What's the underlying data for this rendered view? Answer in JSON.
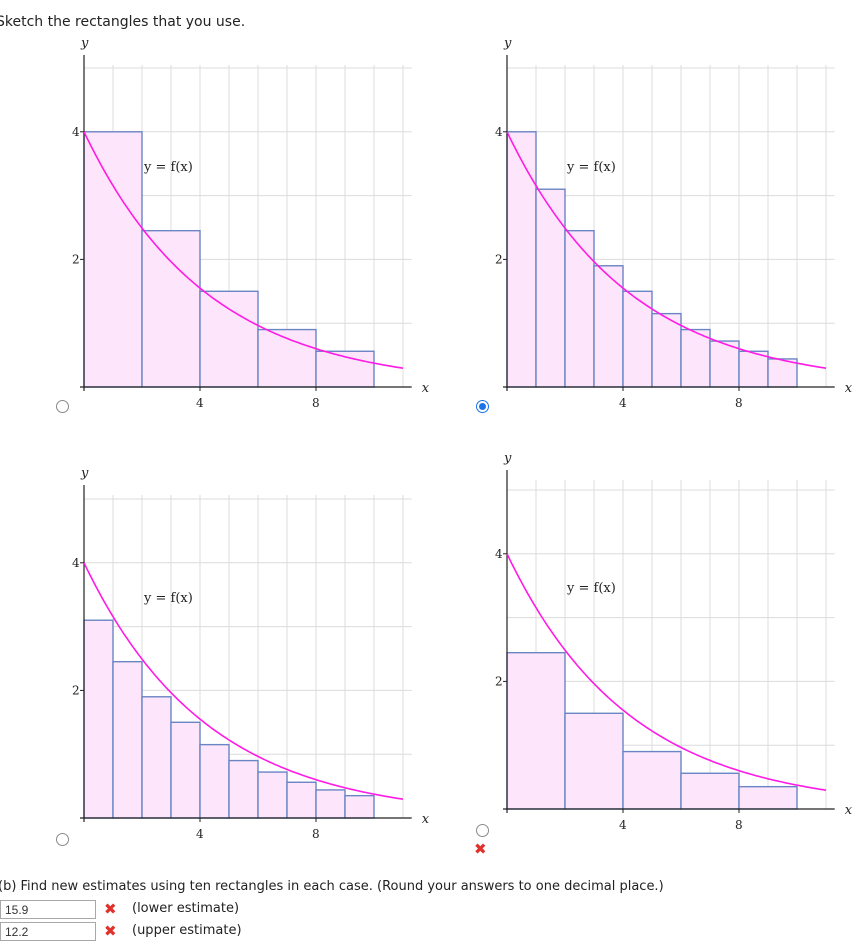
{
  "instruction": "Sketch the rectangles that you use.",
  "graph_labels": {
    "y_axis": "y",
    "x_axis": "x",
    "function": "y = f(x)"
  },
  "tick_labels": {
    "y": [
      "2",
      "4"
    ],
    "x": [
      "4",
      "8"
    ]
  },
  "options": [
    {
      "id": "a",
      "rectangles": 5,
      "endpoint": "left",
      "selected": false,
      "marked_wrong": false
    },
    {
      "id": "b",
      "rectangles": 10,
      "endpoint": "left",
      "selected": true,
      "marked_wrong": false
    },
    {
      "id": "c",
      "rectangles": 10,
      "endpoint": "right",
      "selected": false,
      "marked_wrong": false
    },
    {
      "id": "d",
      "rectangles": 5,
      "endpoint": "right",
      "selected": false,
      "marked_wrong": true
    }
  ],
  "part_b": {
    "prompt": "(b) Find new estimates using ten rectangles in each case. (Round your answers to one decimal place.)",
    "lower": {
      "value": "15.9",
      "label": "(lower estimate)",
      "correct": false
    },
    "upper": {
      "value": "12.2",
      "label": "(upper estimate)",
      "correct": false
    }
  },
  "chart_data": {
    "type": "area",
    "x_range": [
      0,
      11
    ],
    "y_range": [
      -0.2,
      5
    ],
    "x_ticks": [
      4,
      8
    ],
    "y_ticks": [
      2,
      4
    ],
    "curve": {
      "x": [
        0,
        1,
        2,
        3,
        4,
        5,
        6,
        7,
        8,
        9,
        10,
        11
      ],
      "y": [
        4.0,
        3.1,
        2.45,
        1.9,
        1.5,
        1.15,
        0.9,
        0.72,
        0.56,
        0.44,
        0.35,
        0.28
      ]
    },
    "rect_heights_5_left": [
      4.0,
      2.45,
      1.5,
      0.9,
      0.56
    ],
    "rect_heights_10_left": [
      4.0,
      3.1,
      2.45,
      1.9,
      1.5,
      1.15,
      0.9,
      0.72,
      0.56,
      0.44
    ],
    "rect_heights_10_right": [
      3.1,
      2.45,
      1.9,
      1.5,
      1.15,
      0.9,
      0.72,
      0.56,
      0.44,
      0.35
    ],
    "rect_heights_5_right": [
      2.45,
      1.5,
      0.9,
      0.56,
      0.35
    ]
  }
}
